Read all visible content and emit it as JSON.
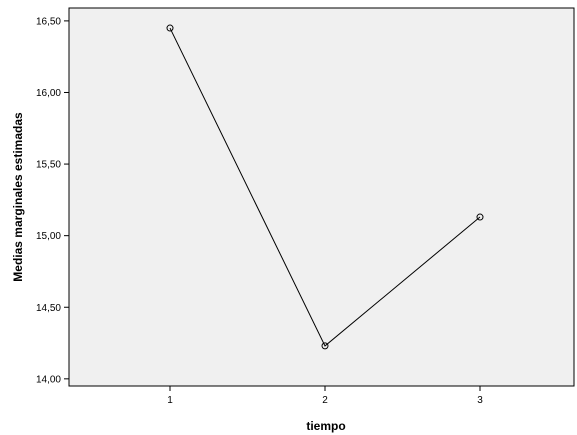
{
  "chart_data": {
    "type": "line",
    "title": "",
    "xlabel": "tiempo",
    "ylabel": "Medias marginales estimadas",
    "categories": [
      "1",
      "2",
      "3"
    ],
    "series": [
      {
        "values": [
          16.45,
          14.23,
          15.13
        ]
      }
    ],
    "ylim": [
      13.95,
      16.59
    ],
    "yticks": [
      14.0,
      14.5,
      15.0,
      15.5,
      16.0,
      16.5
    ],
    "ytick_labels": [
      "14,00",
      "14,50",
      "15,00",
      "15,50",
      "16,00",
      "16,50"
    ],
    "grid": false,
    "legend": "none",
    "colors": {
      "plot_background": "#f0f0f0",
      "line": "#000000",
      "frame": "#000000"
    }
  }
}
